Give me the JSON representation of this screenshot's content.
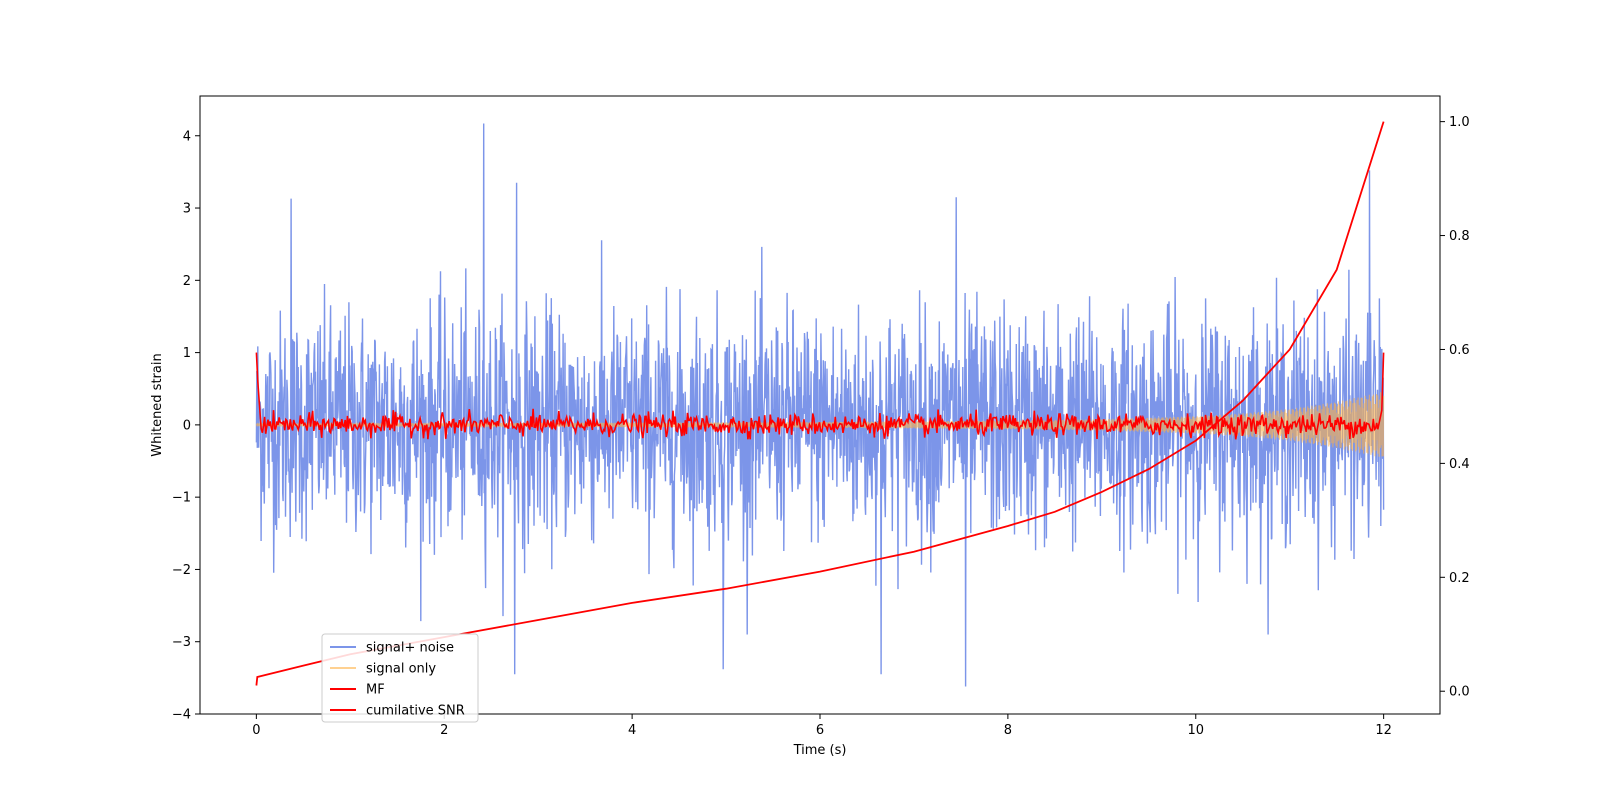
{
  "chart_data": {
    "type": "line",
    "title": "",
    "xlabel": "Time (s)",
    "ylabel": "Whitened strain",
    "y2label": "",
    "xlim": [
      -0.6,
      12.6
    ],
    "ylim": [
      -4,
      4.55
    ],
    "y2lim": [
      -0.04,
      1.045
    ],
    "x_ticks": [
      0,
      2,
      4,
      6,
      8,
      10,
      12
    ],
    "y_ticks": [
      -4,
      -3,
      -2,
      -1,
      0,
      1,
      2,
      3,
      4
    ],
    "y2_ticks": [
      0.0,
      0.2,
      0.4,
      0.6,
      0.8,
      1.0
    ],
    "x_tick_labels": [
      "0",
      "2",
      "4",
      "6",
      "8",
      "10",
      "12"
    ],
    "y_tick_labels": [
      "−4",
      "−3",
      "−2",
      "−1",
      "0",
      "1",
      "2",
      "3",
      "4"
    ],
    "y2_tick_labels": [
      "0.0",
      "0.2",
      "0.4",
      "0.6",
      "0.8",
      "1.0"
    ],
    "grid": false,
    "legend_position": "lower-left",
    "series": [
      {
        "name": "signal+ noise",
        "axis": "left",
        "color": "#5b7be3",
        "opacity": 0.8,
        "description": "dense noise band, std ~0.8, spikes up to about 4.2 and down to about -3.6",
        "envelope_x": [
          0,
          12
        ],
        "envelope_y_typical": [
          -1.9,
          2.2
        ],
        "peaks": [
          {
            "x": 2.42,
            "y": 4.17
          },
          {
            "x": 7.55,
            "y": -3.62
          },
          {
            "x": 0.37,
            "y": 3.13
          },
          {
            "x": 2.77,
            "y": 3.35
          },
          {
            "x": 11.85,
            "y": 3.52
          },
          {
            "x": 7.45,
            "y": 3.15
          },
          {
            "x": 2.75,
            "y": -3.45
          },
          {
            "x": 6.65,
            "y": -3.45
          },
          {
            "x": 4.97,
            "y": -3.38
          }
        ]
      },
      {
        "name": "signal only",
        "axis": "left",
        "color": "#ffb347",
        "opacity": 0.6,
        "description": "chirp with amplitude growing from ~0.02 at t=0 to ~0.45 at t=12",
        "x": [
          0,
          2,
          4,
          6,
          8,
          9,
          10,
          10.5,
          11,
          11.5,
          12
        ],
        "amplitude": [
          0.02,
          0.025,
          0.03,
          0.04,
          0.06,
          0.08,
          0.12,
          0.16,
          0.22,
          0.32,
          0.46
        ]
      },
      {
        "name": "MF",
        "axis": "left",
        "color": "#ff0000",
        "description": "matched-filter output, starts at 1.0, quickly drops to ~0, fluctuates within about ±0.2, ends at 1.0",
        "x": [
          0,
          0.02,
          0.1,
          12,
          12.0
        ],
        "y": [
          1.0,
          0.3,
          0.0,
          0.0,
          1.0
        ]
      },
      {
        "name": "cumilative SNR",
        "axis": "right",
        "color": "#ff0000",
        "x": [
          0,
          0.01,
          0.5,
          1,
          2,
          3,
          4,
          5,
          6,
          7,
          8,
          8.5,
          9,
          9.5,
          10,
          10.5,
          11,
          11.5,
          12
        ],
        "y": [
          0.01,
          0.025,
          0.045,
          0.065,
          0.095,
          0.125,
          0.155,
          0.18,
          0.21,
          0.245,
          0.29,
          0.315,
          0.35,
          0.39,
          0.44,
          0.51,
          0.6,
          0.74,
          1.0
        ]
      }
    ]
  }
}
